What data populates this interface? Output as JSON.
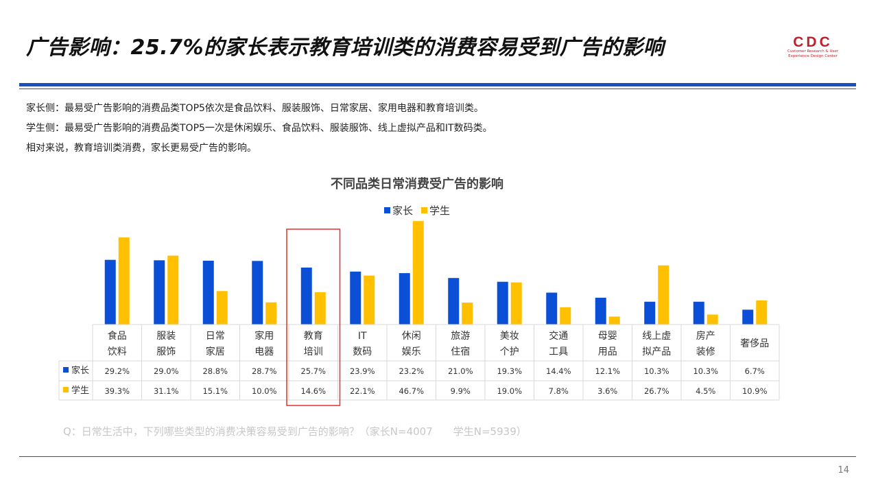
{
  "slide": {
    "title": "广告影响：25.7%的家长表示教育培训类的消费容易受到广告的影响",
    "logo_text": "CDC",
    "logo_sub": "Customer Research & User Experience Design Center",
    "summary": [
      "家长侧：最易受广告影响的消费品类TOP5依次是食品饮料、服装服饰、日常家居、家用电器和教育培训类。",
      "学生侧：最易受广告影响的消费品类TOP5一次是休闲娱乐、食品饮料、服装服饰、线上虚拟产品和IT数码类。",
      "相对来说，教育培训类消费，家长更易受广告的影响。"
    ],
    "question": "Q：日常生活中，下列哪些类型的消费决策容易受到广告的影响？（家长N=4007　　学生N=5939）",
    "page_number": "14"
  },
  "colors": {
    "parent": "#0b4fd6",
    "student": "#ffc000",
    "highlight": "#e03030",
    "accent": "#1e4fbf",
    "logo": "#c0202a"
  },
  "chart_data": {
    "type": "bar",
    "title": "不同品类日常消费受广告的影响",
    "categories": [
      [
        "食品",
        "饮料"
      ],
      [
        "服装",
        "服饰"
      ],
      [
        "日常",
        "家居"
      ],
      [
        "家用",
        "电器"
      ],
      [
        "教育",
        "培训"
      ],
      [
        "IT",
        "数码"
      ],
      [
        "休闲",
        "娱乐"
      ],
      [
        "旅游",
        "住宿"
      ],
      [
        "美妆",
        "个护"
      ],
      [
        "交通",
        "工具"
      ],
      [
        "母婴",
        "用品"
      ],
      [
        "线上虚",
        "拟产品"
      ],
      [
        "房产",
        "装修"
      ],
      [
        "奢侈品"
      ]
    ],
    "series": [
      {
        "name": "家长",
        "values": [
          29.2,
          29.0,
          28.8,
          28.7,
          25.7,
          23.9,
          23.2,
          21.0,
          19.3,
          14.4,
          12.1,
          10.3,
          10.3,
          6.7
        ],
        "labels": [
          "29.2%",
          "29.0%",
          "28.8%",
          "28.7%",
          "25.7%",
          "23.9%",
          "23.2%",
          "21.0%",
          "19.3%",
          "14.4%",
          "12.1%",
          "10.3%",
          "10.3%",
          "6.7%"
        ]
      },
      {
        "name": "学生",
        "values": [
          39.3,
          31.1,
          15.1,
          10.0,
          14.6,
          22.1,
          46.7,
          9.9,
          19.0,
          7.8,
          3.6,
          26.7,
          4.5,
          10.9
        ],
        "labels": [
          "39.3%",
          "31.1%",
          "15.1%",
          "10.0%",
          "14.6%",
          "22.1%",
          "46.7%",
          "9.9%",
          "19.0%",
          "7.8%",
          "3.6%",
          "26.7%",
          "4.5%",
          "10.9%"
        ]
      }
    ],
    "highlight_category_index": 4,
    "legend": "top",
    "data_table": true,
    "ylim": [
      0,
      48
    ]
  }
}
